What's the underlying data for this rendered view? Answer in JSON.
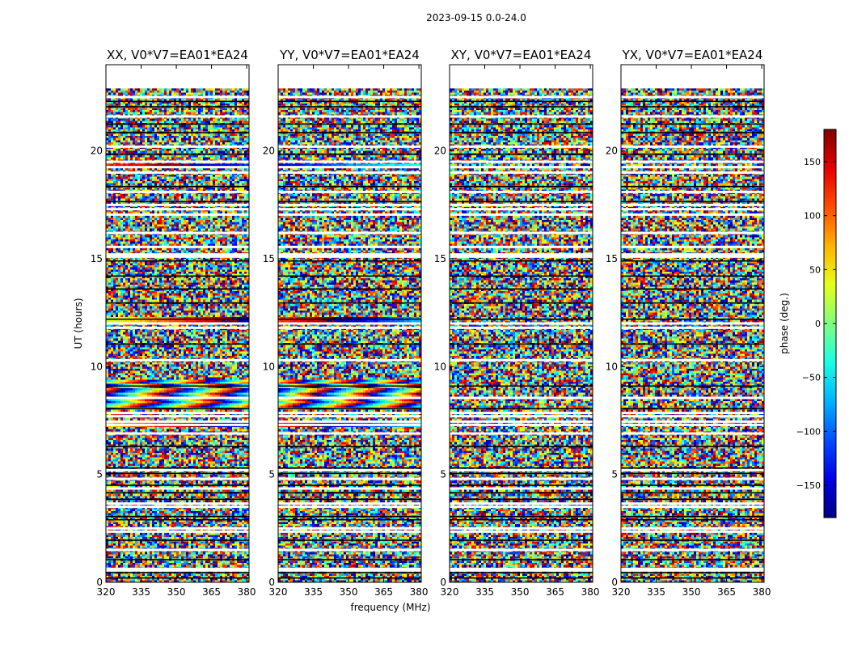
{
  "chart_data": {
    "type": "heatmap",
    "suptitle": "2023-09-15 0.0-24.0",
    "xlabel": "frequency (MHz)",
    "ylabel": "UT (hours)",
    "xlim": [
      320,
      381
    ],
    "ylim": [
      0,
      24
    ],
    "xticks": [
      "320",
      "335",
      "350",
      "365",
      "380"
    ],
    "yticks": [
      "0",
      "5",
      "10",
      "15",
      "20"
    ],
    "colorbar": {
      "label": "phase (deg.)",
      "range": [
        -180,
        180
      ],
      "ticks": [
        "150",
        "100",
        "50",
        "0",
        "−50",
        "−100",
        "−150"
      ],
      "tick_values": [
        150,
        100,
        50,
        0,
        -50,
        -100,
        -150
      ],
      "colormap": "jet"
    },
    "data_extent_hours": [
      0,
      22.9
    ],
    "blank_rows_hours": [
      0.55,
      0.62,
      1.5,
      2.35,
      2.5,
      3.5,
      3.65,
      4.35,
      4.8,
      5.2,
      6.9,
      7.3,
      7.45,
      7.7,
      7.85,
      8.55,
      10.3,
      11.8,
      12.0,
      15.1,
      15.2,
      15.55,
      16.2,
      17.05,
      17.3,
      17.5,
      18.1,
      19.0,
      19.25,
      19.5,
      20.2,
      21.6,
      22.5
    ],
    "dark_rows_hours": [
      0.2,
      0.45,
      1.05,
      1.95,
      2.9,
      3.05,
      3.85,
      4.15,
      4.5,
      5.05,
      5.3,
      6.3,
      8.05,
      9.1,
      11.05,
      12.2,
      12.95,
      13.6,
      14.2,
      14.9,
      17.65,
      18.35,
      19.85,
      20.85,
      21.25,
      22.05,
      22.3
    ],
    "panels": [
      {
        "title": "XX, V0*V7=EA01*EA24",
        "coherent_bands": [
          {
            "hours": [
              8.0,
              9.4
            ],
            "start_phase_deg": 30,
            "slope_deg_per_mhz": 14
          },
          {
            "hours": [
              7.2,
              7.4
            ],
            "start_phase_deg": 60,
            "slope_deg_per_mhz": 3
          },
          {
            "hours": [
              12.0,
              12.3
            ],
            "start_phase_deg": 20,
            "slope_deg_per_mhz": 3
          },
          {
            "hours": [
              19.2,
              19.35
            ],
            "start_phase_deg": 120,
            "slope_deg_per_mhz": 2
          }
        ]
      },
      {
        "title": "YY, V0*V7=EA01*EA24",
        "coherent_bands": [
          {
            "hours": [
              8.0,
              9.4
            ],
            "start_phase_deg": 120,
            "slope_deg_per_mhz": 16
          },
          {
            "hours": [
              7.2,
              7.4
            ],
            "start_phase_deg": 130,
            "slope_deg_per_mhz": 3
          },
          {
            "hours": [
              12.0,
              12.3
            ],
            "start_phase_deg": 110,
            "slope_deg_per_mhz": 3
          },
          {
            "hours": [
              19.2,
              19.35
            ],
            "start_phase_deg": -150,
            "slope_deg_per_mhz": 2
          }
        ]
      },
      {
        "title": "XY, V0*V7=EA01*EA24",
        "coherent_bands": []
      },
      {
        "title": "YX, V0*V7=EA01*EA24",
        "coherent_bands": []
      }
    ]
  }
}
